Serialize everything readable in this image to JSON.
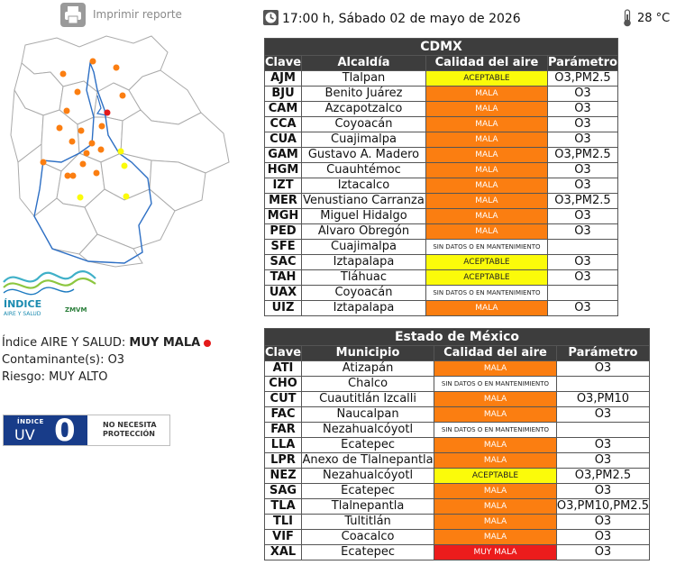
{
  "report": {
    "print_label": "Imprimir reporte"
  },
  "header": {
    "datetime": "17:00 h, Sábado 02 de mayo de 2026",
    "temperature": "28 °C"
  },
  "index": {
    "line1_label": "Índice AIRE Y SALUD:",
    "line1_value": "MUY MALA",
    "line2": "Contaminante(s): O3",
    "line3": "Riesgo: MUY ALTO"
  },
  "logo": {
    "text1": "ÍNDICE",
    "text2": "AIRE Y SALUD",
    "text3": "ZMVM"
  },
  "uv": {
    "word1": "ÍNDICE",
    "word2": "UV",
    "value": "0",
    "desc_line1": "NO NECESITA",
    "desc_line2": "PROTECCIÓN"
  },
  "colors": {
    "mala": "#fb7e11",
    "aceptable": "#fbfb0a",
    "muy_mala": "#ec1c1c",
    "header": "#3d3d3d",
    "uv_blue": "#183c89"
  },
  "cdmx": {
    "title": "CDMX",
    "headers": {
      "clave": "Clave",
      "name": "Alcaldía",
      "quality": "Calidad del aire",
      "param": "Parámetro"
    },
    "rows": [
      {
        "clave": "AJM",
        "name": "Tlalpan",
        "quality": "ACEPTABLE",
        "q": "aceptable",
        "param": "O3,PM2.5"
      },
      {
        "clave": "BJU",
        "name": "Benito Juárez",
        "quality": "MALA",
        "q": "mala",
        "param": "O3"
      },
      {
        "clave": "CAM",
        "name": "Azcapotzalco",
        "quality": "MALA",
        "q": "mala",
        "param": "O3"
      },
      {
        "clave": "CCA",
        "name": "Coyoacán",
        "quality": "MALA",
        "q": "mala",
        "param": "O3"
      },
      {
        "clave": "CUA",
        "name": "Cuajimalpa",
        "quality": "MALA",
        "q": "mala",
        "param": "O3"
      },
      {
        "clave": "GAM",
        "name": "Gustavo A. Madero",
        "quality": "MALA",
        "q": "mala",
        "param": "O3,PM2.5"
      },
      {
        "clave": "HGM",
        "name": "Cuauhtémoc",
        "quality": "MALA",
        "q": "mala",
        "param": "O3"
      },
      {
        "clave": "IZT",
        "name": "Iztacalco",
        "quality": "MALA",
        "q": "mala",
        "param": "O3"
      },
      {
        "clave": "MER",
        "name": "Venustiano Carranza",
        "quality": "MALA",
        "q": "mala",
        "param": "O3,PM2.5"
      },
      {
        "clave": "MGH",
        "name": "Miguel Hidalgo",
        "quality": "MALA",
        "q": "mala",
        "param": "O3"
      },
      {
        "clave": "PED",
        "name": "Álvaro Obregón",
        "quality": "MALA",
        "q": "mala",
        "param": "O3"
      },
      {
        "clave": "SFE",
        "name": "Cuajimalpa",
        "quality": "SIN DATOS O EN MANTENIMIENTO",
        "q": "sindatos",
        "param": ""
      },
      {
        "clave": "SAC",
        "name": "Iztapalapa",
        "quality": "ACEPTABLE",
        "q": "aceptable",
        "param": "O3"
      },
      {
        "clave": "TAH",
        "name": "Tláhuac",
        "quality": "ACEPTABLE",
        "q": "aceptable",
        "param": "O3"
      },
      {
        "clave": "UAX",
        "name": "Coyoacán",
        "quality": "SIN DATOS O EN MANTENIMIENTO",
        "q": "sindatos",
        "param": ""
      },
      {
        "clave": "UIZ",
        "name": "Iztapalapa",
        "quality": "MALA",
        "q": "mala",
        "param": "O3"
      }
    ]
  },
  "edomex": {
    "title": "Estado de México",
    "headers": {
      "clave": "Clave",
      "name": "Municipio",
      "quality": "Calidad del aire",
      "param": "Parámetro"
    },
    "rows": [
      {
        "clave": "ATI",
        "name": "Atizapán",
        "quality": "MALA",
        "q": "mala",
        "param": "O3"
      },
      {
        "clave": "CHO",
        "name": "Chalco",
        "quality": "SIN DATOS O EN MANTENIMIENTO",
        "q": "sindatos",
        "param": ""
      },
      {
        "clave": "CUT",
        "name": "Cuautitlán Izcalli",
        "quality": "MALA",
        "q": "mala",
        "param": "O3,PM10"
      },
      {
        "clave": "FAC",
        "name": "Naucalpan",
        "quality": "MALA",
        "q": "mala",
        "param": "O3"
      },
      {
        "clave": "FAR",
        "name": "Nezahualcóyotl",
        "quality": "SIN DATOS O EN MANTENIMIENTO",
        "q": "sindatos",
        "param": ""
      },
      {
        "clave": "LLA",
        "name": "Ecatepec",
        "quality": "MALA",
        "q": "mala",
        "param": "O3"
      },
      {
        "clave": "LPR",
        "name": "Anexo de Tlalnepantla",
        "quality": "MALA",
        "q": "mala",
        "param": "O3"
      },
      {
        "clave": "NEZ",
        "name": "Nezahualcóyotl",
        "quality": "ACEPTABLE",
        "q": "aceptable",
        "param": "O3,PM2.5"
      },
      {
        "clave": "SAG",
        "name": "Ecatepec",
        "quality": "MALA",
        "q": "mala",
        "param": "O3"
      },
      {
        "clave": "TLA",
        "name": "Tlalnepantla",
        "quality": "MALA",
        "q": "mala",
        "param": "O3,PM10,PM2.5"
      },
      {
        "clave": "TLI",
        "name": "Tultitlán",
        "quality": "MALA",
        "q": "mala",
        "param": "O3"
      },
      {
        "clave": "VIF",
        "name": "Coacalco",
        "quality": "MALA",
        "q": "mala",
        "param": "O3"
      },
      {
        "clave": "XAL",
        "name": "Ecatepec",
        "quality": "MUY MALA",
        "q": "muymala",
        "param": "O3"
      }
    ]
  }
}
